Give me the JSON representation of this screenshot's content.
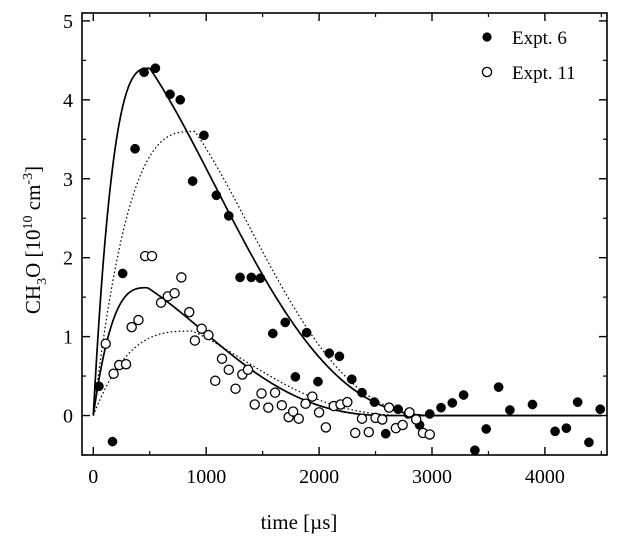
{
  "chart_data": {
    "type": "scatter",
    "title": "",
    "xlabel": "time [µs]",
    "ylabel": {
      "main": "CH",
      "sub1": "3",
      "mid": "O [10",
      "sup1": "10",
      "mid2": " cm",
      "sup2": "-3",
      "end": "]"
    },
    "xlim": [
      -100,
      4550
    ],
    "ylim": [
      -0.5,
      5.1
    ],
    "xticks": [
      0,
      1000,
      2000,
      3000,
      4000
    ],
    "yticks": [
      0,
      1,
      2,
      3,
      4,
      5
    ],
    "xtick_labels": [
      "0",
      "1000",
      "2000",
      "3000",
      "4000"
    ],
    "ytick_labels": [
      "0",
      "1",
      "2",
      "3",
      "4",
      "5"
    ],
    "legend_position": "top-right",
    "legend": [
      "Expt. 6",
      "Expt. 11"
    ],
    "series": [
      {
        "name": "Expt. 6",
        "marker": "filled-circle",
        "points": [
          [
            50,
            0.37
          ],
          [
            170,
            -0.33
          ],
          [
            260,
            1.8
          ],
          [
            370,
            3.38
          ],
          [
            450,
            4.35
          ],
          [
            550,
            4.4
          ],
          [
            680,
            4.07
          ],
          [
            770,
            4.0
          ],
          [
            880,
            2.97
          ],
          [
            980,
            3.55
          ],
          [
            1090,
            2.79
          ],
          [
            1200,
            2.53
          ],
          [
            1300,
            1.75
          ],
          [
            1400,
            1.75
          ],
          [
            1480,
            1.74
          ],
          [
            1590,
            1.04
          ],
          [
            1700,
            1.18
          ],
          [
            1790,
            0.49
          ],
          [
            1890,
            1.05
          ],
          [
            1990,
            0.43
          ],
          [
            2090,
            0.79
          ],
          [
            2180,
            0.75
          ],
          [
            2290,
            0.46
          ],
          [
            2380,
            0.29
          ],
          [
            2490,
            0.17
          ],
          [
            2590,
            -0.23
          ],
          [
            2700,
            0.08
          ],
          [
            2790,
            0.02
          ],
          [
            2890,
            -0.12
          ],
          [
            2980,
            0.02
          ],
          [
            3080,
            0.1
          ],
          [
            3180,
            0.16
          ],
          [
            3280,
            0.26
          ],
          [
            3380,
            -0.44
          ],
          [
            3480,
            -0.17
          ],
          [
            3590,
            0.36
          ],
          [
            3690,
            0.07
          ],
          [
            3890,
            0.14
          ],
          [
            4090,
            -0.2
          ],
          [
            4190,
            -0.16
          ],
          [
            4290,
            0.17
          ],
          [
            4390,
            -0.34
          ],
          [
            4490,
            0.08
          ]
        ]
      },
      {
        "name": "Expt. 11",
        "marker": "open-circle",
        "points": [
          [
            110,
            0.91
          ],
          [
            180,
            0.53
          ],
          [
            230,
            0.64
          ],
          [
            290,
            0.65
          ],
          [
            340,
            1.12
          ],
          [
            400,
            1.21
          ],
          [
            460,
            2.02
          ],
          [
            520,
            2.02
          ],
          [
            600,
            1.43
          ],
          [
            660,
            1.51
          ],
          [
            720,
            1.55
          ],
          [
            780,
            1.75
          ],
          [
            850,
            1.31
          ],
          [
            900,
            0.95
          ],
          [
            960,
            1.1
          ],
          [
            1020,
            1.02
          ],
          [
            1080,
            0.44
          ],
          [
            1140,
            0.72
          ],
          [
            1200,
            0.58
          ],
          [
            1260,
            0.34
          ],
          [
            1320,
            0.52
          ],
          [
            1370,
            0.58
          ],
          [
            1430,
            0.14
          ],
          [
            1490,
            0.28
          ],
          [
            1550,
            0.1
          ],
          [
            1610,
            0.29
          ],
          [
            1670,
            0.13
          ],
          [
            1730,
            -0.02
          ],
          [
            1770,
            0.05
          ],
          [
            1820,
            -0.04
          ],
          [
            1880,
            0.15
          ],
          [
            1940,
            0.24
          ],
          [
            2000,
            0.04
          ],
          [
            2060,
            -0.15
          ],
          [
            2130,
            0.12
          ],
          [
            2190,
            0.14
          ],
          [
            2250,
            0.17
          ],
          [
            2320,
            -0.22
          ],
          [
            2380,
            -0.04
          ],
          [
            2440,
            -0.21
          ],
          [
            2500,
            -0.03
          ],
          [
            2560,
            -0.05
          ],
          [
            2620,
            0.1
          ],
          [
            2680,
            -0.16
          ],
          [
            2740,
            -0.12
          ],
          [
            2800,
            0.04
          ],
          [
            2860,
            -0.05
          ],
          [
            2920,
            -0.22
          ],
          [
            2980,
            -0.24
          ]
        ]
      }
    ],
    "curves": [
      {
        "style": "solid",
        "peak_x": 500,
        "peak_y": 4.4,
        "rise_k": 3.0,
        "decay_x": 3000
      },
      {
        "style": "dotted",
        "peak_x": 900,
        "peak_y": 3.6,
        "rise_k": 3.0,
        "decay_x": 3000
      },
      {
        "style": "solid",
        "peak_x": 480,
        "peak_y": 1.62,
        "rise_k": 3.0,
        "decay_x": 2600
      },
      {
        "style": "dotted",
        "peak_x": 880,
        "peak_y": 1.07,
        "rise_k": 3.0,
        "decay_x": 2800
      }
    ]
  }
}
